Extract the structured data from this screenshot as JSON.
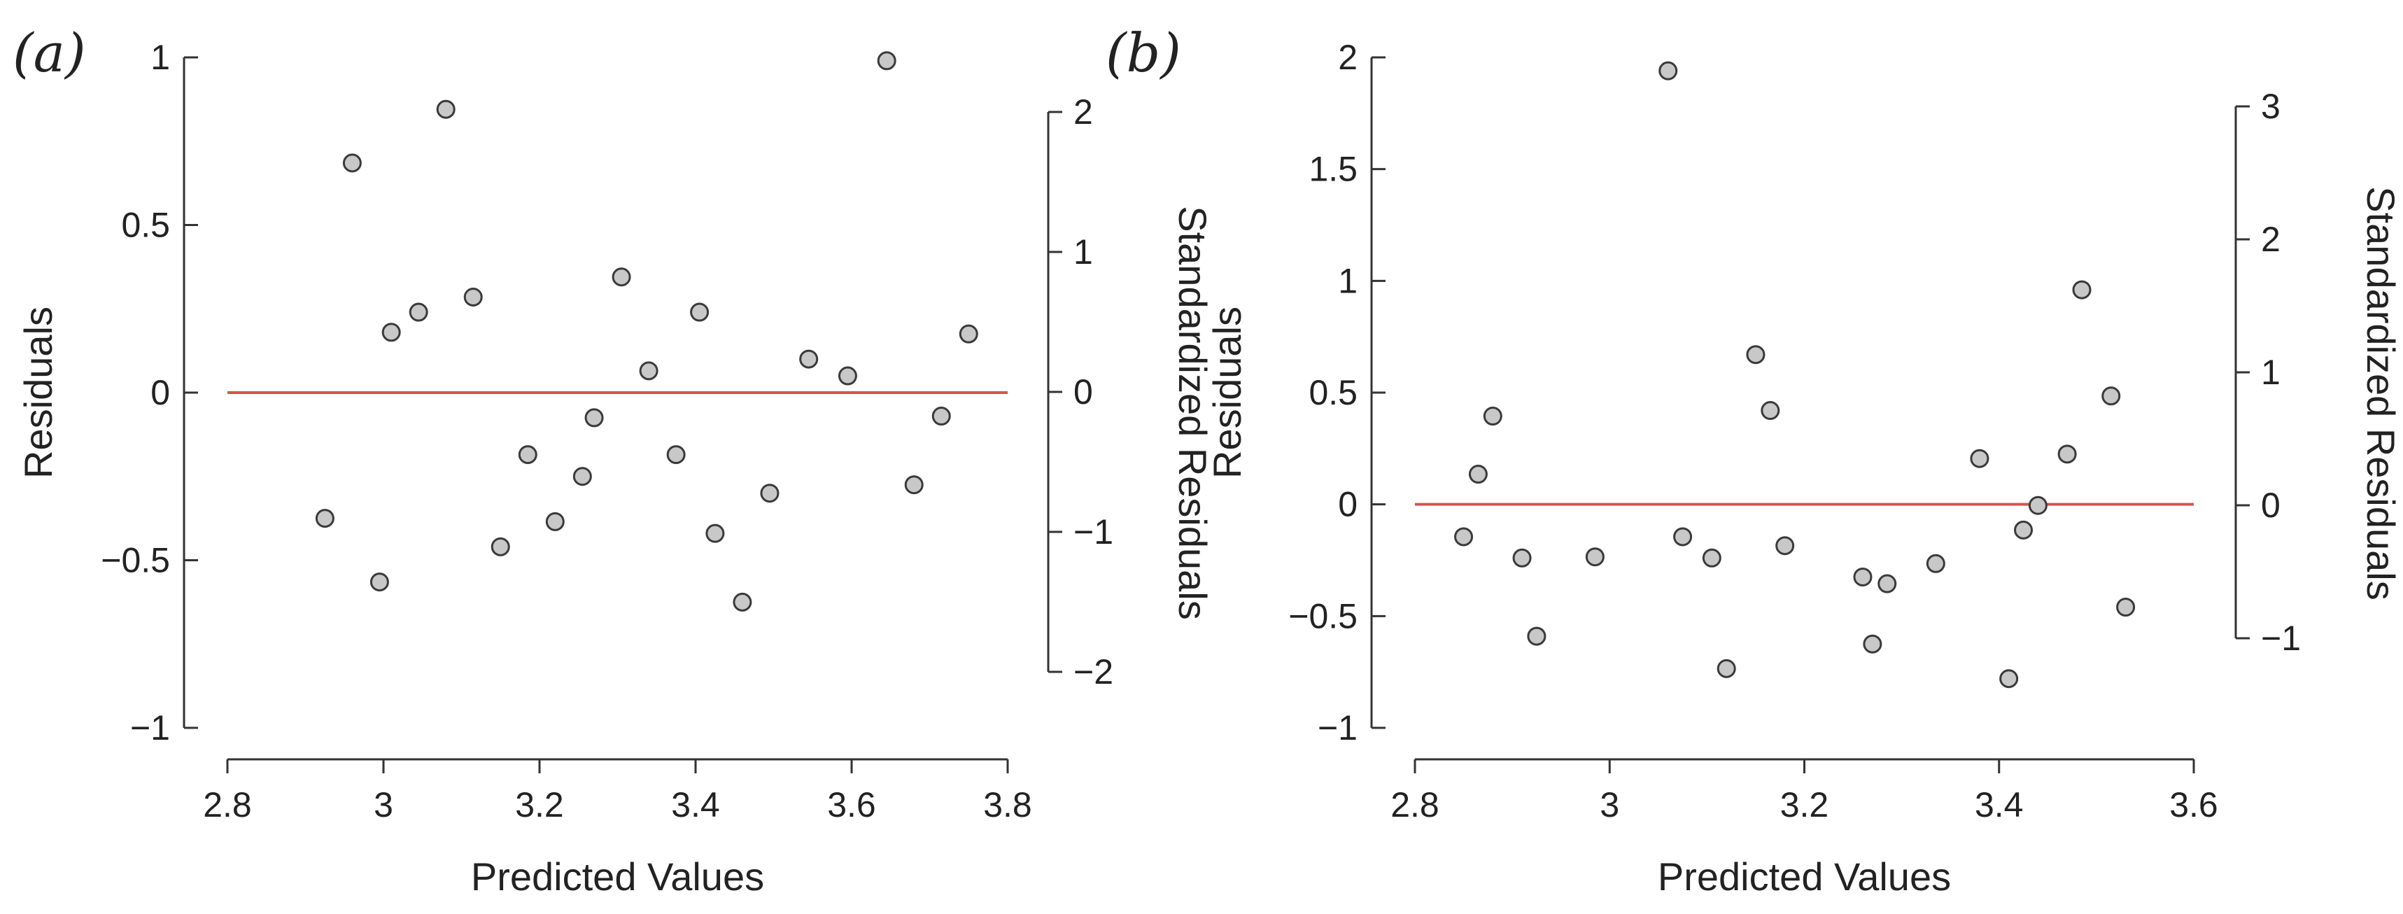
{
  "chart_data": [
    {
      "type": "scatter",
      "panel_label": "(a)",
      "xlabel": "Predicted Values",
      "ylabel": "Residuals",
      "y2label": "Standardized Residuals",
      "xlim": [
        2.8,
        3.8
      ],
      "ylim": [
        -1,
        1
      ],
      "y2lim": [
        -2,
        2
      ],
      "x_ticks": [
        "2.8",
        "3",
        "3.2",
        "3.4",
        "3.6",
        "3.8"
      ],
      "y_ticks": [
        "-1",
        "-0.5",
        "0",
        "0.5",
        "1"
      ],
      "y2_ticks": [
        "-2",
        "-1",
        "0",
        "1",
        "2"
      ],
      "y2_scale": 2.1,
      "zero_line_color": "#d9534f",
      "point_color": "#c8c8c8",
      "x": [
        2.925,
        2.96,
        2.995,
        3.01,
        3.045,
        3.08,
        3.115,
        3.15,
        3.185,
        3.22,
        3.255,
        3.27,
        3.305,
        3.34,
        3.375,
        3.405,
        3.425,
        3.46,
        3.495,
        3.545,
        3.595,
        3.645,
        3.68,
        3.715,
        3.75
      ],
      "y": [
        -0.375,
        0.685,
        -0.565,
        0.18,
        0.24,
        0.845,
        0.285,
        -0.46,
        -0.185,
        -0.385,
        -0.25,
        -0.075,
        0.345,
        0.065,
        -0.185,
        0.24,
        -0.42,
        -0.625,
        -0.3,
        0.1,
        0.05,
        0.99,
        -0.275,
        -0.07,
        0.175
      ]
    },
    {
      "type": "scatter",
      "panel_label": "(b)",
      "xlabel": "Predicted Values",
      "ylabel": "Residuals",
      "y2label": "Standardized Residuals",
      "xlim": [
        2.8,
        3.6
      ],
      "ylim": [
        -1,
        2
      ],
      "y2lim": [
        -1,
        3
      ],
      "x_ticks": [
        "2.8",
        "3",
        "3.2",
        "3.4",
        "3.6"
      ],
      "y_ticks": [
        "-1",
        "-0.5",
        "0",
        "0.5",
        "1",
        "1.5",
        "2"
      ],
      "y2_ticks": [
        "-1",
        "0",
        "1",
        "2",
        "3"
      ],
      "y2_scale": 1.71,
      "zero_line_color": "#d9534f",
      "point_color": "#c8c8c8",
      "x": [
        2.85,
        2.865,
        2.88,
        2.91,
        2.925,
        2.985,
        3.06,
        3.075,
        3.105,
        3.12,
        3.15,
        3.165,
        3.18,
        3.26,
        3.27,
        3.285,
        3.335,
        3.38,
        3.41,
        3.425,
        3.44,
        3.47,
        3.485,
        3.515,
        3.53
      ],
      "y": [
        -0.145,
        0.135,
        0.395,
        -0.24,
        -0.59,
        -0.235,
        1.94,
        -0.145,
        -0.24,
        -0.735,
        0.67,
        0.42,
        -0.185,
        -0.325,
        -0.625,
        -0.355,
        -0.265,
        0.205,
        -0.78,
        -0.115,
        -0.005,
        0.225,
        0.96,
        0.485,
        -0.46
      ]
    }
  ]
}
